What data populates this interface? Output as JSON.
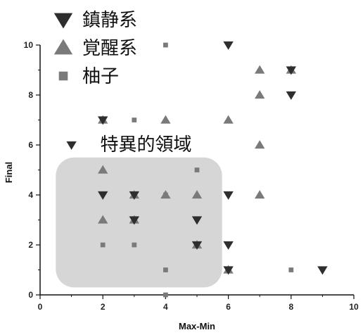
{
  "chart_data": {
    "type": "scatter",
    "title": "",
    "xlabel": "Max-Min",
    "ylabel": "Final",
    "xlim": [
      0,
      10
    ],
    "ylim": [
      0,
      10
    ],
    "xticks": [
      0,
      2,
      4,
      6,
      8,
      10
    ],
    "yticks": [
      0,
      2,
      4,
      6,
      8,
      10
    ],
    "grid": false,
    "legend_position": "top-left",
    "series": [
      {
        "name": "鎮静系",
        "marker": "triangle-down",
        "color": "#2e2e2e",
        "points": [
          [
            6,
            10
          ],
          [
            8,
            9
          ],
          [
            8,
            8
          ],
          [
            2,
            7
          ],
          [
            1,
            6
          ],
          [
            2,
            4
          ],
          [
            3,
            4
          ],
          [
            6,
            4
          ],
          [
            3,
            3
          ],
          [
            5,
            3
          ],
          [
            5,
            2
          ],
          [
            6,
            2
          ],
          [
            6,
            1
          ],
          [
            9,
            1
          ]
        ]
      },
      {
        "name": "覚醒系",
        "marker": "triangle-up",
        "color": "#7a7a7a",
        "points": [
          [
            7,
            9
          ],
          [
            8,
            9
          ],
          [
            7,
            8
          ],
          [
            2,
            7
          ],
          [
            4,
            7
          ],
          [
            6,
            7
          ],
          [
            7,
            6
          ],
          [
            2,
            5
          ],
          [
            3,
            4
          ],
          [
            4,
            4
          ],
          [
            5,
            4
          ],
          [
            7,
            4
          ],
          [
            2,
            3
          ],
          [
            3,
            3
          ],
          [
            5,
            2
          ],
          [
            6,
            1
          ]
        ]
      },
      {
        "name": "柚子",
        "marker": "square",
        "color": "#7a7a7a",
        "points": [
          [
            4,
            10
          ],
          [
            3,
            7
          ],
          [
            5,
            5
          ],
          [
            4,
            4
          ],
          [
            2,
            2
          ],
          [
            3,
            2
          ],
          [
            4,
            1
          ],
          [
            8,
            1
          ],
          [
            4,
            0
          ]
        ]
      }
    ],
    "annotations": [
      {
        "text": "特異的領域",
        "region_x": [
          0.5,
          5.8
        ],
        "region_y": [
          0.3,
          5.5
        ],
        "fill": "#d6d6d6"
      }
    ]
  }
}
